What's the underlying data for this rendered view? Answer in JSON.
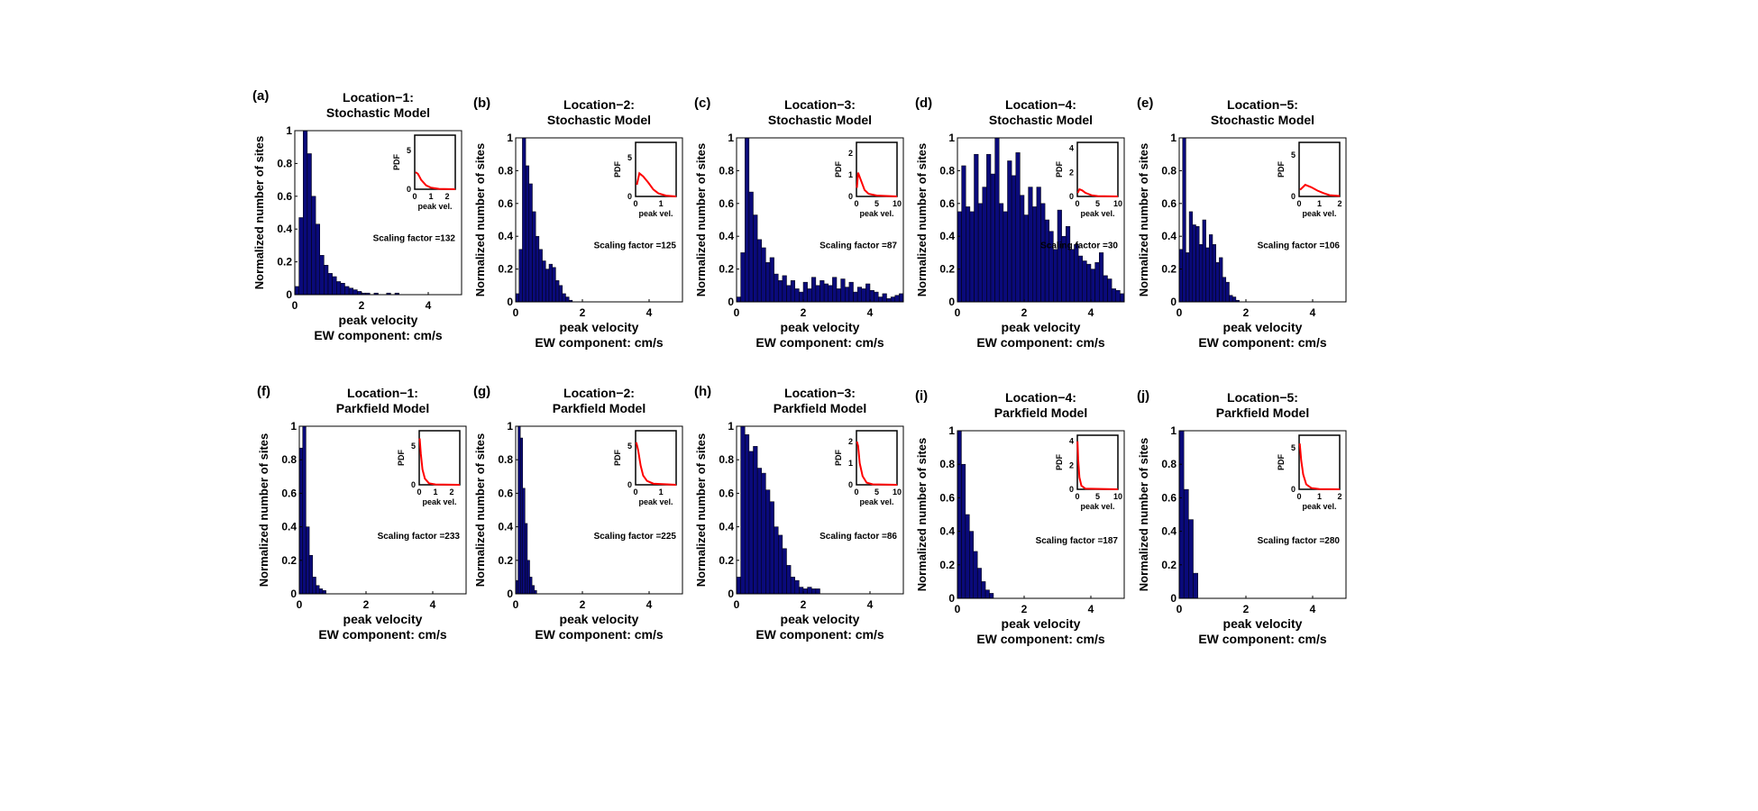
{
  "figure": {
    "ylabel": "Normalized number of sites",
    "xlabel_line1": "peak velocity",
    "xlabel_line2": "EW component: cm/s",
    "inset_ylabel": "PDF",
    "inset_xlabel": "peak vel.",
    "scaling_prefix": "Scaling factor ="
  },
  "colors": {
    "bar": "#0a0a7a",
    "pdf_curve": "#ff0000"
  },
  "chart_data": [
    {
      "type": "bar",
      "label": "(a)",
      "title_line1": "Location−1:",
      "title_line2": "Stochastic Model",
      "xlim": [
        0,
        5
      ],
      "ylim": [
        0,
        1
      ],
      "xticks": [
        0,
        2,
        4
      ],
      "yticks": [
        0,
        0.2,
        0.4,
        0.6,
        0.8,
        1
      ],
      "bin_width": 0.125,
      "values": [
        0.05,
        0.47,
        1.0,
        0.86,
        0.6,
        0.43,
        0.24,
        0.18,
        0.13,
        0.11,
        0.08,
        0.07,
        0.05,
        0.04,
        0.03,
        0.02,
        0.01,
        0.01,
        0,
        0.01,
        0,
        0,
        0.01,
        0,
        0.01
      ],
      "scaling_factor": "132",
      "inset": {
        "xlim": [
          0,
          2.5
        ],
        "ylim": [
          0,
          7
        ],
        "xticks": [
          0,
          1,
          2
        ],
        "yticks": [
          0,
          5
        ],
        "pdf": [
          [
            0.05,
            2.2
          ],
          [
            0.2,
            2.0
          ],
          [
            0.4,
            1.2
          ],
          [
            0.7,
            0.5
          ],
          [
            1.0,
            0.2
          ],
          [
            1.5,
            0.05
          ],
          [
            2.5,
            0.0
          ]
        ]
      }
    },
    {
      "type": "bar",
      "label": "(b)",
      "title_line1": "Location−2:",
      "title_line2": "Stochastic Model",
      "xlim": [
        0,
        5
      ],
      "ylim": [
        0,
        1
      ],
      "xticks": [
        0,
        2,
        4
      ],
      "yticks": [
        0,
        0.2,
        0.4,
        0.6,
        0.8,
        1
      ],
      "bin_width": 0.1,
      "values": [
        0.05,
        0.32,
        1.0,
        0.83,
        0.72,
        0.55,
        0.4,
        0.32,
        0.25,
        0.2,
        0.23,
        0.21,
        0.13,
        0.1,
        0.05,
        0.03,
        0.01
      ],
      "scaling_factor": "125",
      "inset": {
        "xlim": [
          0,
          1.6
        ],
        "ylim": [
          0,
          7
        ],
        "xticks": [
          0,
          1
        ],
        "yticks": [
          0,
          5
        ],
        "pdf": [
          [
            0.05,
            1.5
          ],
          [
            0.15,
            3.0
          ],
          [
            0.3,
            2.6
          ],
          [
            0.5,
            1.8
          ],
          [
            0.7,
            0.9
          ],
          [
            0.9,
            0.4
          ],
          [
            1.2,
            0.1
          ],
          [
            1.6,
            0.0
          ]
        ]
      }
    },
    {
      "type": "bar",
      "label": "(c)",
      "title_line1": "Location−3:",
      "title_line2": "Stochastic Model",
      "xlim": [
        0,
        5
      ],
      "ylim": [
        0,
        1
      ],
      "xticks": [
        0,
        2,
        4
      ],
      "yticks": [
        0,
        0.2,
        0.4,
        0.6,
        0.8,
        1
      ],
      "bin_width": 0.125,
      "values": [
        0.03,
        0.3,
        1.0,
        0.67,
        0.53,
        0.38,
        0.33,
        0.24,
        0.27,
        0.17,
        0.13,
        0.16,
        0.1,
        0.13,
        0.08,
        0.06,
        0.12,
        0.08,
        0.15,
        0.1,
        0.13,
        0.11,
        0.1,
        0.15,
        0.08,
        0.14,
        0.09,
        0.12,
        0.06,
        0.09,
        0.08,
        0.11,
        0.07,
        0.06,
        0.03,
        0.05,
        0.02,
        0.03,
        0.04,
        0.05
      ],
      "scaling_factor": "87",
      "inset": {
        "xlim": [
          0,
          10
        ],
        "ylim": [
          0,
          2.5
        ],
        "xticks": [
          0,
          5,
          10
        ],
        "yticks": [
          0,
          1,
          2
        ],
        "pdf": [
          [
            0.1,
            0.4
          ],
          [
            0.4,
            1.1
          ],
          [
            1.0,
            0.8
          ],
          [
            2.0,
            0.3
          ],
          [
            3.0,
            0.12
          ],
          [
            5.0,
            0.04
          ],
          [
            10.0,
            0.0
          ]
        ]
      }
    },
    {
      "type": "bar",
      "label": "(d)",
      "title_line1": "Location−4:",
      "title_line2": "Stochastic Model",
      "xlim": [
        0,
        5
      ],
      "ylim": [
        0,
        1
      ],
      "xticks": [
        0,
        2,
        4
      ],
      "yticks": [
        0,
        0.2,
        0.4,
        0.6,
        0.8,
        1
      ],
      "bin_width": 0.125,
      "values": [
        0.55,
        0.83,
        0.58,
        0.55,
        0.9,
        0.6,
        0.7,
        0.9,
        0.78,
        1.0,
        0.6,
        0.55,
        0.86,
        0.77,
        0.91,
        0.65,
        0.53,
        0.7,
        0.58,
        0.7,
        0.6,
        0.5,
        0.43,
        0.32,
        0.56,
        0.4,
        0.46,
        0.32,
        0.35,
        0.28,
        0.25,
        0.23,
        0.2,
        0.24,
        0.3,
        0.16,
        0.14,
        0.08,
        0.07,
        0.05
      ],
      "scaling_factor": "30",
      "inset": {
        "xlim": [
          0,
          10
        ],
        "ylim": [
          0,
          4.5
        ],
        "xticks": [
          0,
          5,
          10
        ],
        "yticks": [
          0,
          2,
          4
        ],
        "pdf": [
          [
            0.1,
            0.3
          ],
          [
            0.5,
            0.6
          ],
          [
            1.2,
            0.5
          ],
          [
            2.0,
            0.3
          ],
          [
            3.5,
            0.1
          ],
          [
            5.0,
            0.03
          ],
          [
            10.0,
            0.0
          ]
        ]
      }
    },
    {
      "type": "bar",
      "label": "(e)",
      "title_line1": "Location−5:",
      "title_line2": "Stochastic Model",
      "xlim": [
        0,
        5
      ],
      "ylim": [
        0,
        1
      ],
      "xticks": [
        0,
        2,
        4
      ],
      "yticks": [
        0,
        0.2,
        0.4,
        0.6,
        0.8,
        1
      ],
      "bin_width": 0.1,
      "values": [
        0.32,
        1.0,
        0.3,
        0.55,
        0.47,
        0.46,
        0.35,
        0.5,
        0.33,
        0.41,
        0.35,
        0.24,
        0.27,
        0.15,
        0.12,
        0.04,
        0.03,
        0.01
      ],
      "scaling_factor": "106",
      "inset": {
        "xlim": [
          0,
          2
        ],
        "ylim": [
          0,
          6.5
        ],
        "xticks": [
          0,
          1,
          2
        ],
        "yticks": [
          0,
          5
        ],
        "pdf": [
          [
            0.05,
            0.8
          ],
          [
            0.3,
            1.4
          ],
          [
            0.6,
            1.1
          ],
          [
            0.9,
            0.7
          ],
          [
            1.2,
            0.4
          ],
          [
            1.5,
            0.15
          ],
          [
            2.0,
            0.05
          ]
        ]
      }
    },
    {
      "type": "bar",
      "label": "(f)",
      "title_line1": "Location−1:",
      "title_line2": "Parkfield Model",
      "xlim": [
        0,
        5
      ],
      "ylim": [
        0,
        1
      ],
      "xticks": [
        0,
        2,
        4
      ],
      "yticks": [
        0,
        0.2,
        0.4,
        0.6,
        0.8,
        1
      ],
      "bin_width": 0.1,
      "values": [
        0.87,
        1.0,
        0.4,
        0.23,
        0.1,
        0.05,
        0.03,
        0.02
      ],
      "scaling_factor": "233",
      "inset": {
        "xlim": [
          0,
          2.5
        ],
        "ylim": [
          0,
          7
        ],
        "xticks": [
          0,
          1,
          2
        ],
        "yticks": [
          0,
          5
        ],
        "pdf": [
          [
            0.03,
            6.0
          ],
          [
            0.1,
            4.0
          ],
          [
            0.2,
            2.0
          ],
          [
            0.35,
            0.8
          ],
          [
            0.6,
            0.2
          ],
          [
            1.0,
            0.05
          ],
          [
            2.5,
            0.0
          ]
        ]
      }
    },
    {
      "type": "bar",
      "label": "(g)",
      "title_line1": "Location−2:",
      "title_line2": "Parkfield Model",
      "xlim": [
        0,
        5
      ],
      "ylim": [
        0,
        1
      ],
      "xticks": [
        0,
        2,
        4
      ],
      "yticks": [
        0,
        0.2,
        0.4,
        0.6,
        0.8,
        1
      ],
      "bin_width": 0.07,
      "values": [
        0.08,
        1.0,
        0.93,
        0.63,
        0.42,
        0.2,
        0.1,
        0.05,
        0.02
      ],
      "scaling_factor": "225",
      "inset": {
        "xlim": [
          0,
          1.6
        ],
        "ylim": [
          0,
          7
        ],
        "xticks": [
          0,
          1
        ],
        "yticks": [
          0,
          5
        ],
        "pdf": [
          [
            0.03,
            5.5
          ],
          [
            0.1,
            4.5
          ],
          [
            0.2,
            2.5
          ],
          [
            0.3,
            1.2
          ],
          [
            0.45,
            0.5
          ],
          [
            0.7,
            0.15
          ],
          [
            1.6,
            0.0
          ]
        ]
      }
    },
    {
      "type": "bar",
      "label": "(h)",
      "title_line1": "Location−3:",
      "title_line2": "Parkfield Model",
      "xlim": [
        0,
        5
      ],
      "ylim": [
        0,
        1
      ],
      "xticks": [
        0,
        2,
        4
      ],
      "yticks": [
        0,
        0.2,
        0.4,
        0.6,
        0.8,
        1
      ],
      "bin_width": 0.125,
      "values": [
        0.1,
        1.0,
        0.95,
        0.85,
        0.88,
        0.75,
        0.72,
        0.62,
        0.55,
        0.4,
        0.35,
        0.27,
        0.17,
        0.1,
        0.08,
        0.04,
        0.03,
        0.04,
        0.03,
        0.03
      ],
      "scaling_factor": "86",
      "inset": {
        "xlim": [
          0,
          10
        ],
        "ylim": [
          0,
          2.5
        ],
        "xticks": [
          0,
          5,
          10
        ],
        "yticks": [
          0,
          1,
          2
        ],
        "pdf": [
          [
            0.1,
            2.0
          ],
          [
            0.4,
            1.8
          ],
          [
            0.8,
            1.0
          ],
          [
            1.5,
            0.4
          ],
          [
            2.5,
            0.1
          ],
          [
            4.0,
            0.02
          ],
          [
            10.0,
            0.0
          ]
        ]
      }
    },
    {
      "type": "bar",
      "label": "(i)",
      "title_line1": "Location−4:",
      "title_line2": "Parkfield Model",
      "xlim": [
        0,
        5
      ],
      "ylim": [
        0,
        1
      ],
      "xticks": [
        0,
        2,
        4
      ],
      "yticks": [
        0,
        0.2,
        0.4,
        0.6,
        0.8,
        1
      ],
      "bin_width": 0.12,
      "values": [
        1.0,
        0.8,
        0.5,
        0.4,
        0.28,
        0.18,
        0.1,
        0.05,
        0.03
      ],
      "scaling_factor": "187",
      "inset": {
        "xlim": [
          0,
          10
        ],
        "ylim": [
          0,
          4.5
        ],
        "xticks": [
          0,
          5,
          10
        ],
        "yticks": [
          0,
          2,
          4
        ],
        "pdf": [
          [
            0.05,
            4.0
          ],
          [
            0.2,
            2.5
          ],
          [
            0.5,
            1.0
          ],
          [
            1.0,
            0.3
          ],
          [
            2.0,
            0.05
          ],
          [
            10.0,
            0.0
          ]
        ]
      }
    },
    {
      "type": "bar",
      "label": "(j)",
      "title_line1": "Location−5:",
      "title_line2": "Parkfield Model",
      "xlim": [
        0,
        5
      ],
      "ylim": [
        0,
        1
      ],
      "xticks": [
        0,
        2,
        4
      ],
      "yticks": [
        0,
        0.2,
        0.4,
        0.6,
        0.8,
        1
      ],
      "bin_width": 0.14,
      "values": [
        1.0,
        0.65,
        0.47,
        0.15
      ],
      "scaling_factor": "280",
      "inset": {
        "xlim": [
          0,
          2
        ],
        "ylim": [
          0,
          6.5
        ],
        "xticks": [
          0,
          1,
          2
        ],
        "yticks": [
          0,
          5
        ],
        "pdf": [
          [
            0.03,
            5.5
          ],
          [
            0.1,
            3.5
          ],
          [
            0.2,
            1.8
          ],
          [
            0.35,
            0.6
          ],
          [
            0.6,
            0.15
          ],
          [
            1.0,
            0.03
          ],
          [
            2.0,
            0.0
          ]
        ]
      }
    }
  ]
}
